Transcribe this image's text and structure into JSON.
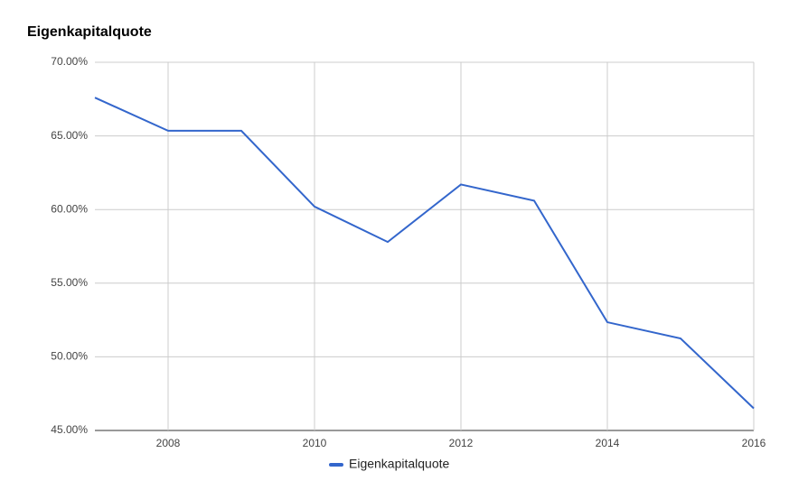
{
  "chart_data": {
    "type": "line",
    "title": "Eigenkapitalquote",
    "x": [
      2007,
      2008,
      2009,
      2010,
      2011,
      2012,
      2013,
      2014,
      2015,
      2016
    ],
    "series": [
      {
        "name": "Eigenkapitalquote",
        "color": "#3366cc",
        "values": [
          67.6,
          65.35,
          65.35,
          60.2,
          57.8,
          61.7,
          60.6,
          52.35,
          51.25,
          46.5
        ]
      }
    ],
    "xlim": [
      2007,
      2016
    ],
    "xticks": [
      2008,
      2010,
      2012,
      2014,
      2016
    ],
    "ylim": [
      45,
      70
    ],
    "yticks": [
      {
        "value": 45,
        "label": "45.00%"
      },
      {
        "value": 50,
        "label": "50.00%"
      },
      {
        "value": 55,
        "label": "55.00%"
      },
      {
        "value": 60,
        "label": "60.00%"
      },
      {
        "value": 65,
        "label": "65.00%"
      },
      {
        "value": 70,
        "label": "70.00%"
      }
    ],
    "grid": true,
    "legend": "bottom"
  }
}
